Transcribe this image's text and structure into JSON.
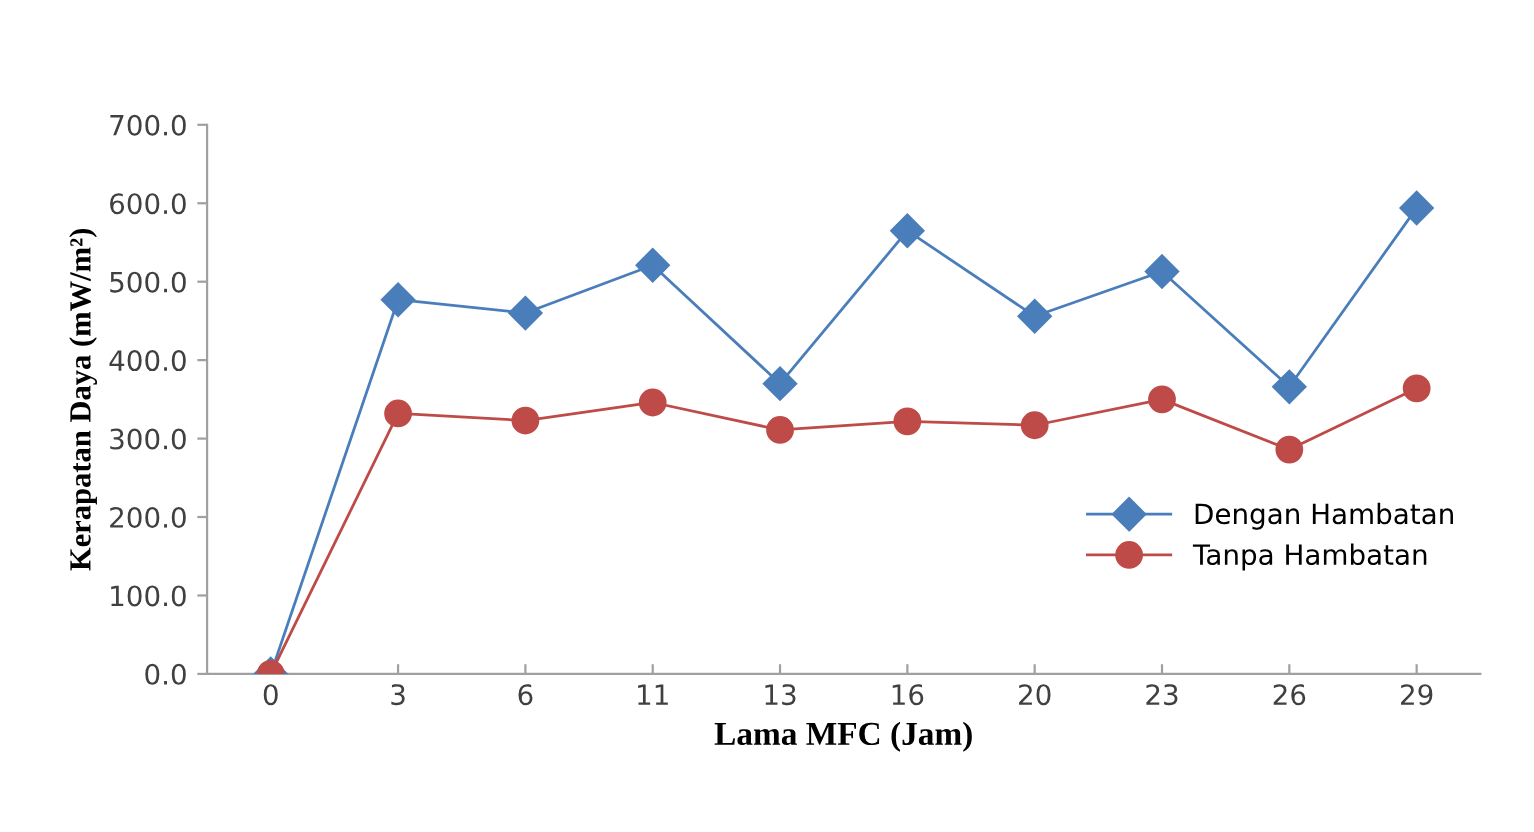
{
  "chart_data": {
    "type": "line",
    "xlabel": "Lama MFC (Jam)",
    "ylabel": "Kerapatan Daya (mW/m²)",
    "categories": [
      "0",
      "3",
      "6",
      "11",
      "13",
      "16",
      "20",
      "23",
      "26",
      "29"
    ],
    "series": [
      {
        "name": "Dengan Hambatan",
        "color": "#4a7ebb",
        "marker": "diamond",
        "values": [
          0,
          477,
          460,
          521,
          370,
          565,
          456,
          513,
          366,
          594
        ]
      },
      {
        "name": "Tanpa Hambatan",
        "color": "#be4b48",
        "marker": "circle",
        "values": [
          0,
          332,
          323,
          346,
          311,
          322,
          317,
          350,
          286,
          364
        ]
      }
    ],
    "ylim": [
      0,
      700
    ],
    "yticks": [
      {
        "value": 0,
        "label": "0.0"
      },
      {
        "value": 100,
        "label": "100.0"
      },
      {
        "value": 200,
        "label": "200.0"
      },
      {
        "value": 300,
        "label": "300.0"
      },
      {
        "value": 400,
        "label": "400.0"
      },
      {
        "value": 500,
        "label": "500.0"
      },
      {
        "value": 600,
        "label": "600.0"
      },
      {
        "value": 700,
        "label": "700.0"
      }
    ],
    "grid": false,
    "legend": "right",
    "line_style": "solid"
  }
}
